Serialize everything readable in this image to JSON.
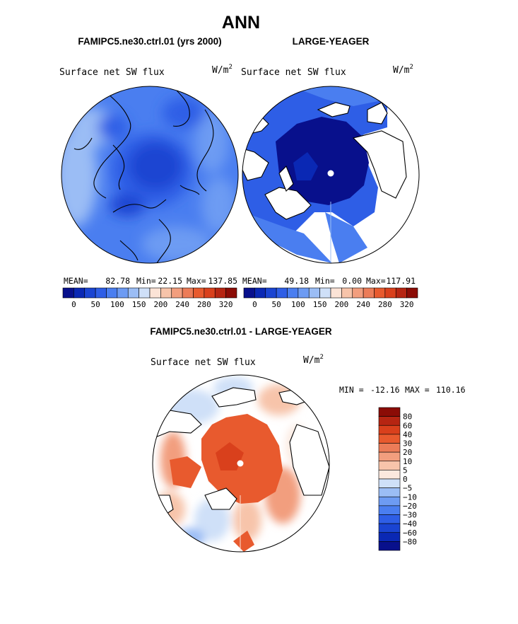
{
  "figure": {
    "title": "ANN",
    "colors": {
      "absolute": [
        "#08108c",
        "#0a28b4",
        "#1a44d2",
        "#2e5ee6",
        "#4a7ef0",
        "#6d9bf3",
        "#9bbdf5",
        "#cfe0f8",
        "#fbe3d6",
        "#f7c4aa",
        "#f29e7e",
        "#ec7c58",
        "#e85a2e",
        "#d9401c",
        "#b62512",
        "#8b0c06"
      ],
      "difference": [
        "#08108c",
        "#0a28b4",
        "#1a44d2",
        "#2e5ee6",
        "#4a7ef0",
        "#6d9bf3",
        "#9bbdf5",
        "#cfe0f8",
        "#fbe8de",
        "#f7c4aa",
        "#f29e7e",
        "#ec7c58",
        "#e85a2e",
        "#d9401c",
        "#b62512",
        "#8b0c06"
      ]
    }
  },
  "chart_data": [
    {
      "type": "heatmap",
      "projection": "north-polar-stereographic",
      "title": "FAMIPC5.ne30.ctrl.01 (yrs 2000)",
      "variable": "Surface net SW flux",
      "units": "W/m",
      "units_sup": "2",
      "stats": {
        "mean_label": "MEAN=",
        "mean": "82.78",
        "min_label": "Min=",
        "min": "22.15",
        "max_label": "Max=",
        "max": "137.85"
      },
      "colorbar": {
        "orientation": "horizontal",
        "levels": [
          "0",
          "50",
          "100",
          "150",
          "200",
          "240",
          "280",
          "320"
        ]
      }
    },
    {
      "type": "heatmap",
      "projection": "north-polar-stereographic",
      "title": "LARGE-YEAGER",
      "variable": "Surface net SW flux",
      "units": "W/m",
      "units_sup": "2",
      "stats": {
        "mean_label": "MEAN=",
        "mean": "49.18",
        "min_label": "Min=",
        "min": "0.00",
        "max_label": "Max=",
        "max": "117.91"
      },
      "colorbar": {
        "orientation": "horizontal",
        "levels": [
          "0",
          "50",
          "100",
          "150",
          "200",
          "240",
          "280",
          "320"
        ]
      }
    },
    {
      "type": "heatmap",
      "projection": "north-polar-stereographic",
      "title": "FAMIPC5.ne30.ctrl.01 - LARGE-YEAGER",
      "variable": "Surface net SW flux",
      "units": "W/m",
      "units_sup": "2",
      "stats": {
        "min_label": "MIN =",
        "min": "-12.16",
        "max_label": "MAX =",
        "max": "110.16"
      },
      "colorbar": {
        "orientation": "vertical",
        "levels": [
          "80",
          "60",
          "40",
          "30",
          "20",
          "10",
          "5",
          "0",
          "−5",
          "−10",
          "−20",
          "−30",
          "−40",
          "−60",
          "−80"
        ]
      }
    }
  ]
}
